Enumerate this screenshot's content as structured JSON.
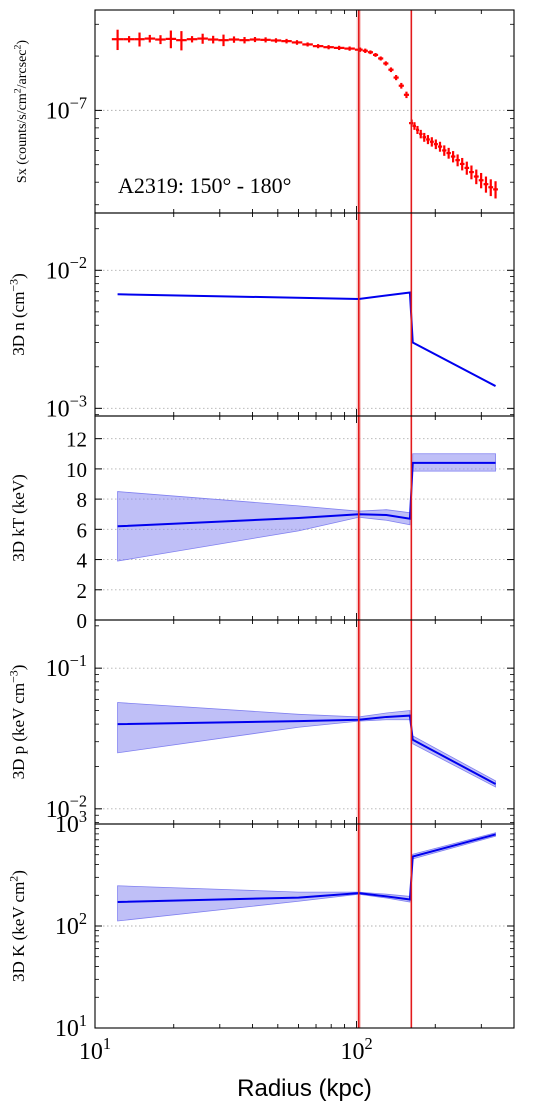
{
  "chart_data": {
    "type": "line",
    "shared_x": {
      "label": "Radius (kpc)",
      "scale": "log",
      "lim": [
        10,
        400
      ],
      "tick_values": [
        10,
        100
      ],
      "tick_labels": [
        {
          "base": "10",
          "exp": "1"
        },
        {
          "base": "10",
          "exp": "2"
        }
      ]
    },
    "vertical_lines": [
      {
        "x": 102,
        "color": "#e31a1c",
        "band": [
          100,
          104
        ]
      },
      {
        "x": 162,
        "color": "#e31a1c"
      }
    ],
    "panels": [
      {
        "id": "sx",
        "ylabel_main": "Sx (counts/s/cm",
        "ylabel_parts": [
          "Sx (counts/s/cm",
          "2",
          "/arcsec",
          "2",
          ")"
        ],
        "yscale": "log",
        "ylim": [
          2.7e-08,
          3.6e-07
        ],
        "grid_y": [
          1e-07
        ],
        "ticks": [
          {
            "v": 1e-07,
            "base": "10",
            "exp": "−7"
          }
        ],
        "annotation": "A2319: 150° - 180°",
        "series": [
          {
            "style": "step-errorbar",
            "color": "#ff0000",
            "x": [
              12.2,
              13.5,
              14.8,
              16.2,
              17.8,
              19.5,
              21.4,
              23.5,
              25.8,
              28.3,
              31.0,
              34.0,
              37.3,
              40.9,
              44.9,
              49.2,
              54.0,
              59.2,
              65.0,
              71.3,
              78.2,
              85.8,
              94.1,
              103.2,
              108.0,
              113.0,
              118.2,
              123.7,
              129.4,
              135.4,
              141.7,
              148.3,
              155.2,
              162.4,
              166.5,
              171.0,
              176.0,
              181.5,
              187.5,
              194.0,
              201.0,
              208.5,
              216.5,
              225.0,
              234.0,
              243.5,
              253.5,
              264.0,
              275.0,
              287.0,
              299.5,
              312.5,
              326.0,
              340.0
            ],
            "y": [
              2.48e-07,
              2.48e-07,
              2.48e-07,
              2.5e-07,
              2.47e-07,
              2.49e-07,
              2.45e-07,
              2.48e-07,
              2.5e-07,
              2.47e-07,
              2.45e-07,
              2.47e-07,
              2.45e-07,
              2.47e-07,
              2.46e-07,
              2.44e-07,
              2.42e-07,
              2.38e-07,
              2.32e-07,
              2.27e-07,
              2.24e-07,
              2.22e-07,
              2.2e-07,
              2.17e-07,
              2.14e-07,
              2.1e-07,
              2.03e-07,
              1.94e-07,
              1.82e-07,
              1.68e-07,
              1.52e-07,
              1.37e-07,
              1.22e-07,
              8.5e-08,
              8.2e-08,
              7.8e-08,
              7.4e-08,
              7.1e-08,
              6.9e-08,
              6.7e-08,
              6.5e-08,
              6.3e-08,
              6e-08,
              5.8e-08,
              5.55e-08,
              5.3e-08,
              5.05e-08,
              4.8e-08,
              4.55e-08,
              4.3e-08,
              4.1e-08,
              3.9e-08,
              3.75e-08,
              3.65e-08
            ],
            "yerr": [
              3.2e-08,
              1e-08,
              2.2e-08,
              1.2e-08,
              1.4e-08,
              2.8e-08,
              3e-08,
              1e-08,
              1.6e-08,
              1.2e-08,
              1.8e-08,
              1e-08,
              1e-08,
              8e-09,
              8e-09,
              7e-09,
              7e-09,
              7e-09,
              6e-09,
              6e-09,
              6e-09,
              6e-09,
              6e-09,
              6e-09,
              6e-09,
              5e-09,
              5e-09,
              5e-09,
              5e-09,
              5e-09,
              5e-09,
              5e-09,
              5e-09,
              4e-09,
              4e-09,
              4e-09,
              4e-09,
              4e-09,
              4e-09,
              4e-09,
              4e-09,
              4e-09,
              4e-09,
              4e-09,
              4e-09,
              4e-09,
              4e-09,
              4e-09,
              4e-09,
              4e-09,
              4e-09,
              4e-09,
              4e-09,
              4e-09
            ]
          }
        ]
      },
      {
        "id": "n",
        "ylabel_parts": [
          "3D n (cm",
          "−3",
          ")"
        ],
        "yscale": "log",
        "ylim": [
          0.00088,
          0.026
        ],
        "grid_y": [
          0.001,
          0.01
        ],
        "ticks": [
          {
            "v": 0.01,
            "base": "10",
            "exp": "−2"
          },
          {
            "v": 0.001,
            "base": "10",
            "exp": "−3"
          }
        ],
        "series": [
          {
            "style": "line",
            "color": "#0000ee",
            "x": [
              12.2,
              102,
              160,
              164,
              340
            ],
            "y": [
              0.0067,
              0.0062,
              0.0069,
              0.003,
              0.00145
            ]
          }
        ]
      },
      {
        "id": "kT",
        "ylabel_parts": [
          "3D kT (keV)"
        ],
        "yscale": "linear",
        "ylim": [
          0,
          13.5
        ],
        "grid_y": [
          2,
          4,
          6,
          8,
          10,
          12
        ],
        "ticks": [
          {
            "v": 0,
            "text": "0"
          },
          {
            "v": 2,
            "text": "2"
          },
          {
            "v": 4,
            "text": "4"
          },
          {
            "v": 6,
            "text": "6"
          },
          {
            "v": 8,
            "text": "8"
          },
          {
            "v": 10,
            "text": "10"
          },
          {
            "v": 12,
            "text": "12"
          }
        ],
        "series": [
          {
            "style": "line-band",
            "color": "#0000ee",
            "band_color": "#8080f0",
            "segments": [
              {
                "x": [
                  12.2,
                  60,
                  102,
                  130,
                  160
                ],
                "y": [
                  6.2,
                  6.75,
                  7.0,
                  6.95,
                  6.7
                ],
                "lo": [
                  3.9,
                  5.9,
                  6.8,
                  6.6,
                  6.3
                ],
                "hi": [
                  8.5,
                  7.55,
                  7.2,
                  7.3,
                  7.1
                ]
              },
              {
                "x": [
                  164,
                  340
                ],
                "y": [
                  10.4,
                  10.4
                ],
                "lo": [
                  9.85,
                  9.85
                ],
                "hi": [
                  11.0,
                  11.0
                ]
              }
            ]
          }
        ]
      },
      {
        "id": "p",
        "ylabel_parts": [
          "3D p (keV cm",
          "−3",
          ")"
        ],
        "yscale": "log",
        "ylim": [
          0.0078,
          0.22
        ],
        "grid_y": [
          0.01,
          0.1
        ],
        "ticks": [
          {
            "v": 0.1,
            "base": "10",
            "exp": "−1"
          },
          {
            "v": 0.01,
            "base": "10",
            "exp": "−2"
          }
        ],
        "series": [
          {
            "style": "line-band",
            "color": "#0000ee",
            "band_color": "#8080f0",
            "segments": [
              {
                "x": [
                  12.2,
                  60,
                  102,
                  130,
                  160
                ],
                "y": [
                  0.04,
                  0.042,
                  0.043,
                  0.045,
                  0.046
                ],
                "lo": [
                  0.025,
                  0.038,
                  0.042,
                  0.043,
                  0.043
                ],
                "hi": [
                  0.057,
                  0.047,
                  0.045,
                  0.048,
                  0.05
                ]
              },
              {
                "x": [
                  164,
                  340
                ],
                "y": [
                  0.031,
                  0.015
                ],
                "lo": [
                  0.029,
                  0.0143
                ],
                "hi": [
                  0.033,
                  0.0158
                ]
              }
            ]
          }
        ]
      },
      {
        "id": "K",
        "ylabel_parts": [
          "3D K (keV cm",
          "2",
          ")"
        ],
        "yscale": "log",
        "ylim": [
          10,
          1000
        ],
        "grid_y": [
          100,
          1000
        ],
        "ticks": [
          {
            "v": 1000,
            "base": "10",
            "exp": "3"
          },
          {
            "v": 100,
            "base": "10",
            "exp": "2"
          },
          {
            "v": 10,
            "base": "10",
            "exp": "1"
          }
        ],
        "series": [
          {
            "style": "line-band",
            "color": "#0000ee",
            "band_color": "#8080f0",
            "segments": [
              {
                "x": [
                  12.2,
                  60,
                  102,
                  130,
                  160
                ],
                "y": [
                  172,
                  190,
                  210,
                  195,
                  182
                ],
                "lo": [
                  112,
                  175,
                  205,
                  188,
                  172
                ],
                "hi": [
                  248,
                  215,
                  215,
                  205,
                  195
                ]
              },
              {
                "x": [
                  164,
                  340
                ],
                "y": [
                  480,
                  790
                ],
                "lo": [
                  455,
                  760
                ],
                "hi": [
                  505,
                  820
                ]
              }
            ]
          }
        ]
      }
    ]
  }
}
